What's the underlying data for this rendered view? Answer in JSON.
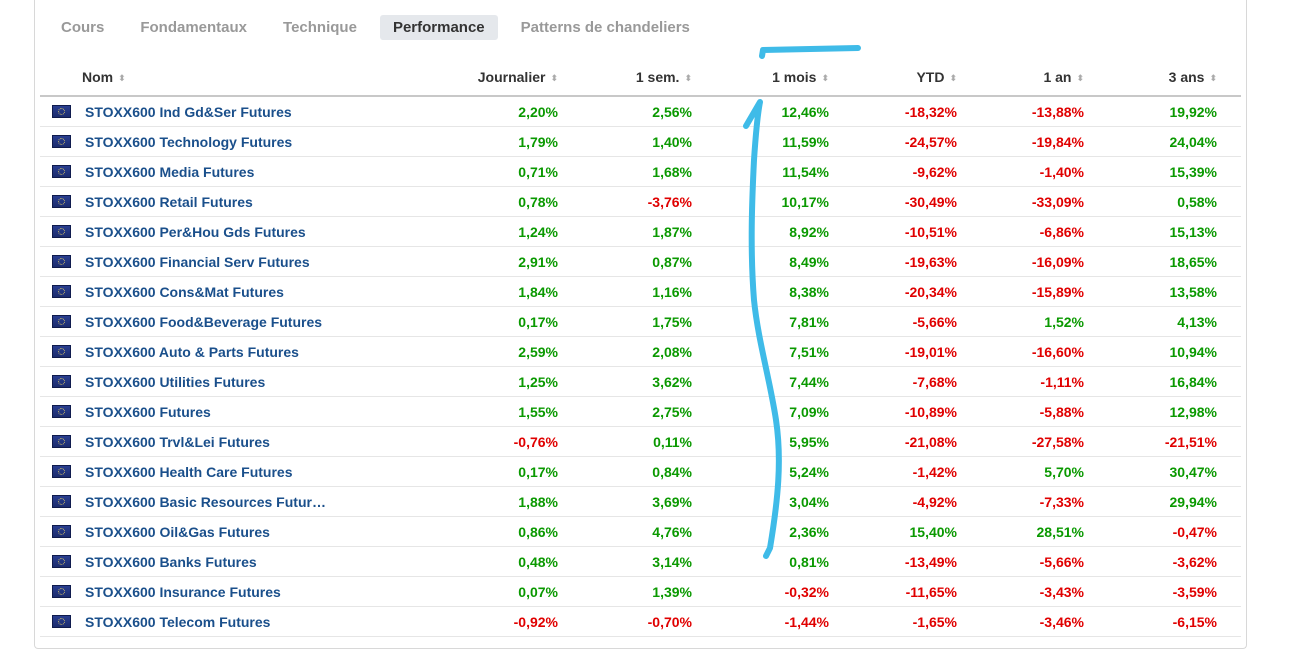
{
  "tabs": [
    {
      "label": "Cours",
      "active": false
    },
    {
      "label": "Fondamentaux",
      "active": false
    },
    {
      "label": "Technique",
      "active": false
    },
    {
      "label": "Performance",
      "active": true
    },
    {
      "label": "Patterns de chandeliers",
      "active": false
    }
  ],
  "table": {
    "headers": [
      "Nom",
      "Journalier",
      "1 sem.",
      "1 mois",
      "YTD",
      "1 an",
      "3 ans"
    ],
    "rows": [
      {
        "name": "STOXX600 Ind Gd&Ser Futures",
        "values": [
          "2,20%",
          "2,56%",
          "12,46%",
          "-18,32%",
          "-13,88%",
          "19,92%"
        ]
      },
      {
        "name": "STOXX600 Technology Futures",
        "values": [
          "1,79%",
          "1,40%",
          "11,59%",
          "-24,57%",
          "-19,84%",
          "24,04%"
        ]
      },
      {
        "name": "STOXX600 Media Futures",
        "values": [
          "0,71%",
          "1,68%",
          "11,54%",
          "-9,62%",
          "-1,40%",
          "15,39%"
        ]
      },
      {
        "name": "STOXX600 Retail Futures",
        "values": [
          "0,78%",
          "-3,76%",
          "10,17%",
          "-30,49%",
          "-33,09%",
          "0,58%"
        ]
      },
      {
        "name": "STOXX600 Per&Hou Gds Futures",
        "values": [
          "1,24%",
          "1,87%",
          "8,92%",
          "-10,51%",
          "-6,86%",
          "15,13%"
        ]
      },
      {
        "name": "STOXX600 Financial Serv Futures",
        "values": [
          "2,91%",
          "0,87%",
          "8,49%",
          "-19,63%",
          "-16,09%",
          "18,65%"
        ]
      },
      {
        "name": "STOXX600 Cons&Mat Futures",
        "values": [
          "1,84%",
          "1,16%",
          "8,38%",
          "-20,34%",
          "-15,89%",
          "13,58%"
        ]
      },
      {
        "name": "STOXX600 Food&Beverage Futures",
        "values": [
          "0,17%",
          "1,75%",
          "7,81%",
          "-5,66%",
          "1,52%",
          "4,13%"
        ]
      },
      {
        "name": "STOXX600 Auto & Parts Futures",
        "values": [
          "2,59%",
          "2,08%",
          "7,51%",
          "-19,01%",
          "-16,60%",
          "10,94%"
        ]
      },
      {
        "name": "STOXX600 Utilities Futures",
        "values": [
          "1,25%",
          "3,62%",
          "7,44%",
          "-7,68%",
          "-1,11%",
          "16,84%"
        ]
      },
      {
        "name": "STOXX600 Futures",
        "values": [
          "1,55%",
          "2,75%",
          "7,09%",
          "-10,89%",
          "-5,88%",
          "12,98%"
        ]
      },
      {
        "name": "STOXX600 Trvl&Lei Futures",
        "values": [
          "-0,76%",
          "0,11%",
          "5,95%",
          "-21,08%",
          "-27,58%",
          "-21,51%"
        ]
      },
      {
        "name": "STOXX600 Health Care Futures",
        "values": [
          "0,17%",
          "0,84%",
          "5,24%",
          "-1,42%",
          "5,70%",
          "30,47%"
        ]
      },
      {
        "name": "STOXX600 Basic Resources Futur…",
        "values": [
          "1,88%",
          "3,69%",
          "3,04%",
          "-4,92%",
          "-7,33%",
          "29,94%"
        ]
      },
      {
        "name": "STOXX600 Oil&Gas Futures",
        "values": [
          "0,86%",
          "4,76%",
          "2,36%",
          "15,40%",
          "28,51%",
          "-0,47%"
        ]
      },
      {
        "name": "STOXX600 Banks Futures",
        "values": [
          "0,48%",
          "3,14%",
          "0,81%",
          "-13,49%",
          "-5,66%",
          "-3,62%"
        ]
      },
      {
        "name": "STOXX600 Insurance Futures",
        "values": [
          "0,07%",
          "1,39%",
          "-0,32%",
          "-11,65%",
          "-3,43%",
          "-3,59%"
        ]
      },
      {
        "name": "STOXX600 Telecom Futures",
        "values": [
          "-0,92%",
          "-0,70%",
          "-1,44%",
          "-1,65%",
          "-3,46%",
          "-6,15%"
        ]
      }
    ]
  },
  "colors": {
    "positive": "#0a9900",
    "negative": "#e00000",
    "link": "#1a4f8b",
    "annotation": "#3fbbe8"
  },
  "icons": {
    "row_flag": "eu-flag-icon",
    "sort": "sort-arrows-icon"
  }
}
